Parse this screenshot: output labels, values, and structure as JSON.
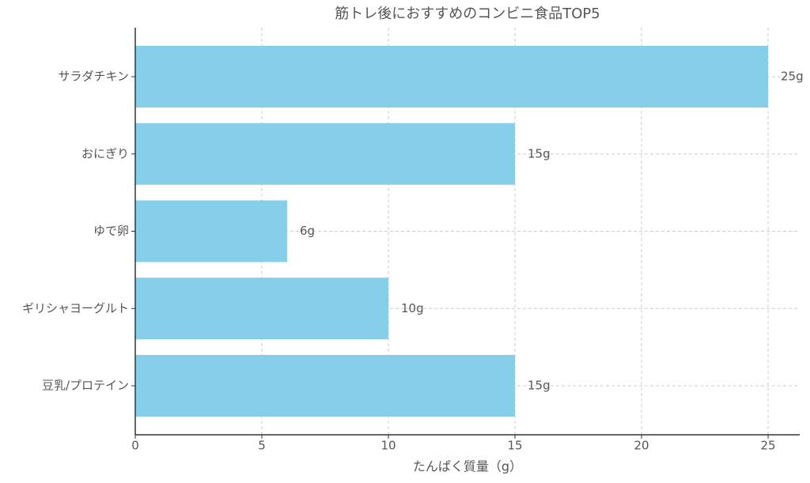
{
  "chart_data": {
    "type": "barh",
    "title": "筋トレ後におすすめのコンビニ食品TOP5",
    "x_label": "たんぱく質量（g）",
    "categories": [
      "サラダチキン",
      "おにぎり",
      "ゆで卵",
      "ギリシャヨーグルト",
      "豆乳/プロテイン"
    ],
    "values": [
      25,
      15,
      6,
      10,
      15
    ],
    "value_labels": [
      "25g",
      "15g",
      "6g",
      "10g",
      "15g"
    ],
    "color": "#87ceeb",
    "xlim": [
      0,
      26.25
    ],
    "xticks": [
      0,
      5,
      10,
      15,
      20,
      25
    ],
    "grid": true
  }
}
